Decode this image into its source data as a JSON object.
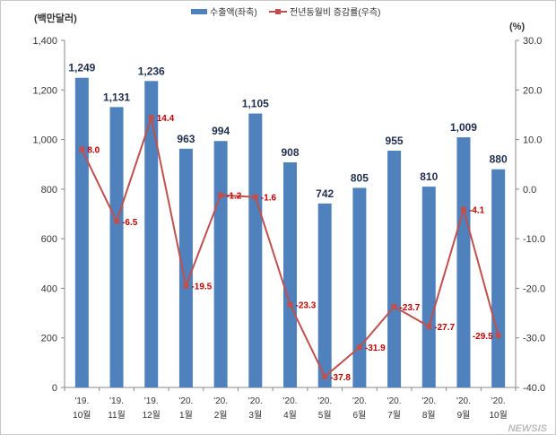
{
  "chart_data": {
    "type": "bar+line",
    "categories": [
      [
        "'19.",
        "10월"
      ],
      [
        "'19.",
        "11월"
      ],
      [
        "'19.",
        "12월"
      ],
      [
        "'20.",
        "1월"
      ],
      [
        "'20.",
        "2월"
      ],
      [
        "'20.",
        "3월"
      ],
      [
        "'20.",
        "4월"
      ],
      [
        "'20.",
        "5월"
      ],
      [
        "'20.",
        "6월"
      ],
      [
        "'20.",
        "7월"
      ],
      [
        "'20.",
        "8월"
      ],
      [
        "'20.",
        "9월"
      ],
      [
        "'20.",
        "10월"
      ]
    ],
    "series": [
      {
        "name": "수출액(좌축)",
        "type": "bar",
        "axis": "left",
        "color": "#4f81bd",
        "values": [
          1249,
          1131,
          1236,
          963,
          994,
          1105,
          908,
          742,
          805,
          955,
          810,
          1009,
          880
        ],
        "labels": [
          "1,249",
          "1,131",
          "1,236",
          "963",
          "994",
          "1,105",
          "908",
          "742",
          "805",
          "955",
          "810",
          "1,009",
          "880"
        ]
      },
      {
        "name": "전년동월비 증감률(우측)",
        "type": "line",
        "axis": "right",
        "color": "#c0504d",
        "values": [
          8.0,
          -6.5,
          14.4,
          -19.5,
          -1.2,
          -1.6,
          -23.3,
          -37.8,
          -31.9,
          -23.7,
          -27.7,
          -4.1,
          -29.5
        ],
        "labels": [
          "8.0",
          "-6.5",
          "14.4",
          "-19.5",
          "-1.2",
          "-1.6",
          "-23.3",
          "-37.8",
          "-31.9",
          "-23.7",
          "-27.7",
          "-4.1",
          "-29.5"
        ]
      }
    ],
    "left_axis": {
      "label": "(백만달러)",
      "range": [
        0,
        1400
      ],
      "ticks": [
        "0",
        "200",
        "400",
        "600",
        "800",
        "1,000",
        "1,200",
        "1,400"
      ]
    },
    "right_axis": {
      "label": "(%)",
      "range": [
        -40,
        30
      ],
      "ticks": [
        "-40.0",
        "-30.0",
        "-20.0",
        "-10.0",
        "0.0",
        "10.0",
        "20.0",
        "30.0"
      ]
    },
    "grid": false,
    "legend": "top"
  },
  "watermark": "NEWSIS"
}
